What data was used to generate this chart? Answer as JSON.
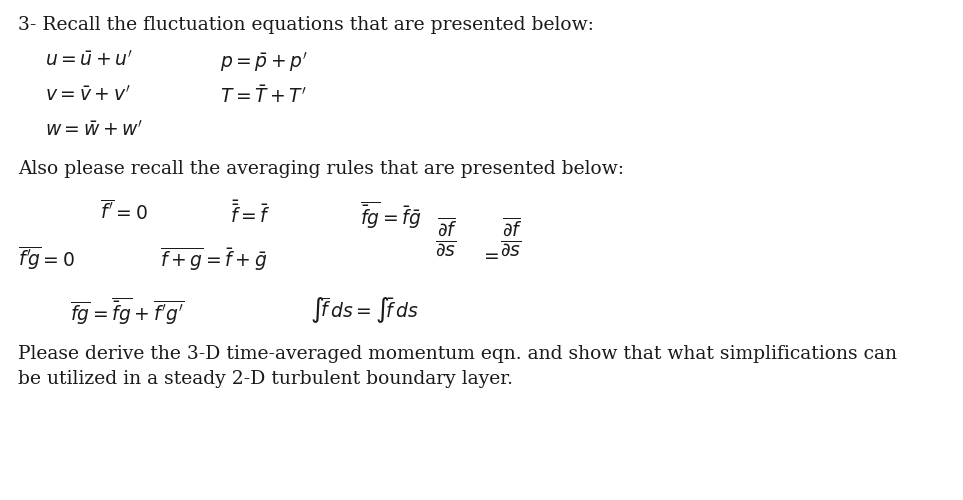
{
  "background_color": "#ffffff",
  "text_color": "#1a1a1a",
  "title_line": "3- Recall the fluctuation equations that are presented below:",
  "footer1": "Please derive the 3-D time-averaged momentum eqn. and show that what simplifications can",
  "footer2": "be utilized in a steady 2-D turbulent boundary layer.",
  "fontsize_text": 13.5,
  "fontsize_math": 13.5
}
